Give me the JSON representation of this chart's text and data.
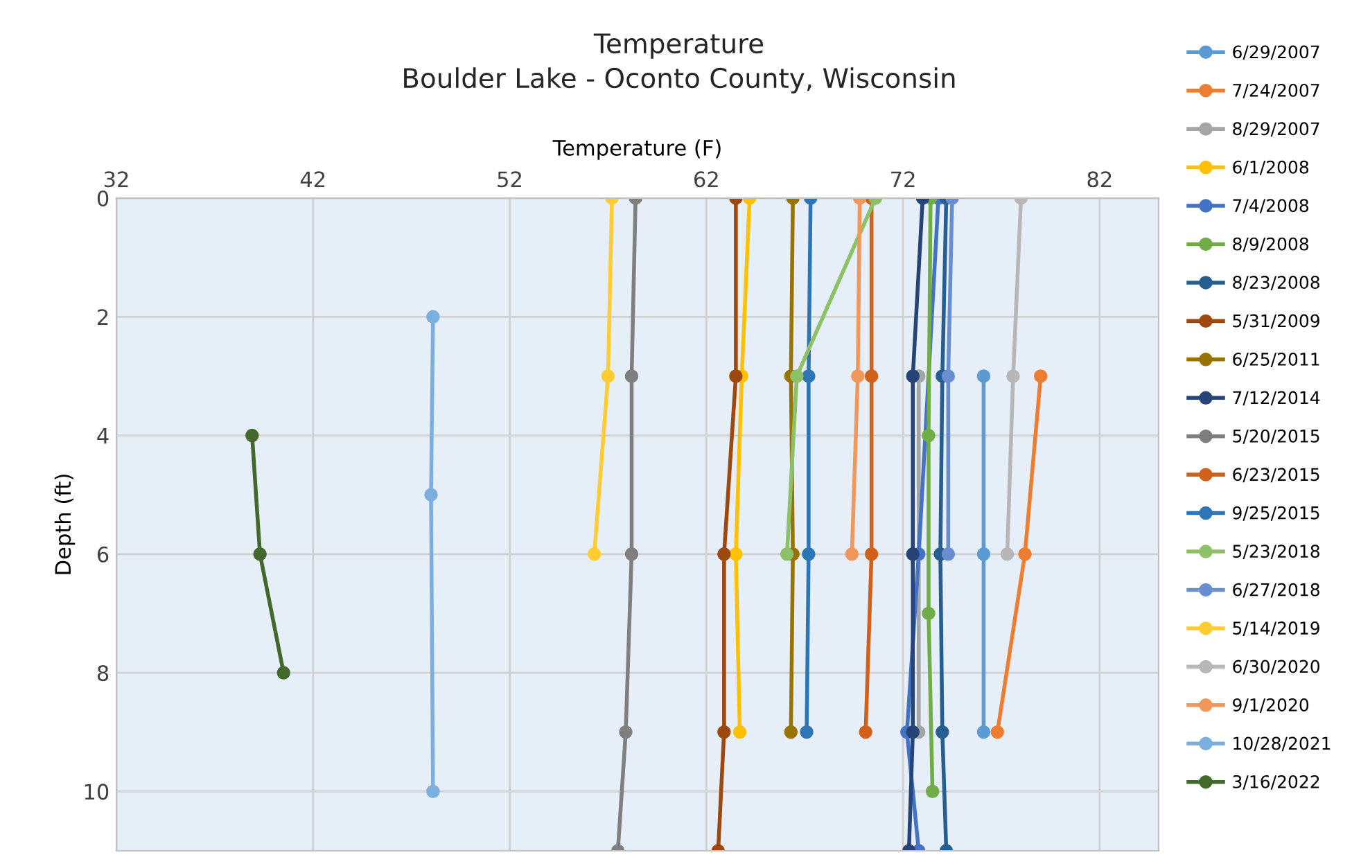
{
  "chart_data": {
    "type": "line",
    "title": "Temperature",
    "subtitle": "Boulder Lake - Oconto County, Wisconsin",
    "xlabel": "Temperature (F)",
    "ylabel": "Depth (ft)",
    "xlim": [
      32,
      85
    ],
    "xticks": [
      32,
      42,
      52,
      62,
      72,
      82
    ],
    "ylim": [
      11,
      0
    ],
    "yticks": [
      0,
      2,
      4,
      6,
      8,
      10
    ],
    "grid": true,
    "legend": "right",
    "marker": "circle",
    "line_style": "solid",
    "series": [
      {
        "name": "6/29/2007",
        "color": "#5b9bd5",
        "x": [
          76.1,
          76.1,
          76.1
        ],
        "values": [
          3,
          6,
          9
        ]
      },
      {
        "name": "7/24/2007",
        "color": "#ed7d31",
        "x": [
          79.0,
          78.2,
          76.8
        ],
        "values": [
          3,
          6,
          9
        ]
      },
      {
        "name": "8/29/2007",
        "color": "#a5a5a5",
        "x": [
          72.8,
          72.8
        ],
        "values": [
          3,
          9
        ]
      },
      {
        "name": "6/1/2008",
        "color": "#ffc000",
        "x": [
          64.2,
          63.8,
          63.5,
          63.7
        ],
        "values": [
          0,
          3,
          6,
          9
        ]
      },
      {
        "name": "7/4/2008",
        "color": "#4472c4",
        "x": [
          73.8,
          72.8,
          72.2,
          72.8
        ],
        "values": [
          0,
          6,
          9,
          11
        ]
      },
      {
        "name": "8/9/2008",
        "color": "#70ad47",
        "x": [
          73.4,
          73.3,
          73.3,
          73.5
        ],
        "values": [
          0,
          4,
          7,
          10
        ]
      },
      {
        "name": "8/23/2008",
        "color": "#255e91",
        "x": [
          74.2,
          74.0,
          73.9,
          74.0,
          74.2
        ],
        "values": [
          0,
          3,
          6,
          9,
          11
        ]
      },
      {
        "name": "5/31/2009",
        "color": "#9e480e",
        "x": [
          63.5,
          63.5,
          62.9,
          62.9,
          62.6
        ],
        "values": [
          0,
          3,
          6,
          9,
          11
        ]
      },
      {
        "name": "6/25/2011",
        "color": "#997300",
        "x": [
          66.4,
          66.3,
          66.4,
          66.3
        ],
        "values": [
          0,
          3,
          6,
          9
        ]
      },
      {
        "name": "7/12/2014",
        "color": "#264478",
        "x": [
          73.0,
          72.5,
          72.5,
          72.5,
          72.3
        ],
        "values": [
          0,
          3,
          6,
          9,
          11
        ]
      },
      {
        "name": "5/20/2015",
        "color": "#7f7f7f",
        "x": [
          58.4,
          58.2,
          58.2,
          57.9,
          57.5
        ],
        "values": [
          0,
          3,
          6,
          9,
          11
        ]
      },
      {
        "name": "6/23/2015",
        "color": "#d0601a",
        "x": [
          70.4,
          70.4,
          70.4,
          70.1
        ],
        "values": [
          0,
          3,
          6,
          9
        ]
      },
      {
        "name": "9/25/2015",
        "color": "#2e75b6",
        "x": [
          67.3,
          67.2,
          67.2,
          67.1
        ],
        "values": [
          0,
          3,
          6,
          9
        ]
      },
      {
        "name": "5/23/2018",
        "color": "#8cc168",
        "x": [
          70.6,
          66.6,
          66.1
        ],
        "values": [
          0,
          3,
          6
        ]
      },
      {
        "name": "6/27/2018",
        "color": "#698ed0",
        "x": [
          74.5,
          74.3,
          74.3
        ],
        "values": [
          0,
          3,
          6
        ]
      },
      {
        "name": "5/14/2019",
        "color": "#ffcd33",
        "x": [
          57.2,
          57.0,
          56.3
        ],
        "values": [
          0,
          3,
          6
        ]
      },
      {
        "name": "6/30/2020",
        "color": "#b7b7b7",
        "x": [
          78.0,
          77.6,
          77.3
        ],
        "values": [
          0,
          3,
          6
        ]
      },
      {
        "name": "9/1/2020",
        "color": "#f1975a",
        "x": [
          69.8,
          69.7,
          69.4
        ],
        "values": [
          0,
          3,
          6
        ]
      },
      {
        "name": "10/28/2021",
        "color": "#7cafdd",
        "x": [
          48.1,
          48.0,
          48.1
        ],
        "values": [
          2,
          5,
          10
        ]
      },
      {
        "name": "3/16/2022",
        "color": "#43682b",
        "x": [
          38.9,
          39.3,
          40.5
        ],
        "values": [
          4,
          6,
          8
        ]
      }
    ]
  }
}
